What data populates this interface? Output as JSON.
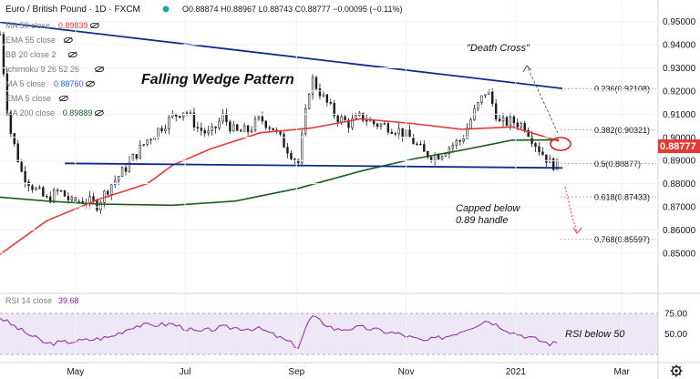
{
  "header": {
    "symbol": "Euro / British Pound · 1D · FXCM",
    "ohlc": "O0.88874 H0.88967 L0.88743 C0.88777 −0.00095 (−0.11%)"
  },
  "indicators": [
    {
      "name": "MA 50 close",
      "value": "0.89839",
      "color": "#e53935"
    },
    {
      "name": "EMA 55 close",
      "value": "",
      "color": "#787b86"
    },
    {
      "name": "BB 20 close 2",
      "value": "",
      "color": "#787b86"
    },
    {
      "name": "Ichimoku 9 26 52 26",
      "value": "",
      "color": "#787b86"
    },
    {
      "name": "MA 5 close",
      "value": "0.88760",
      "color": "#2962ff"
    },
    {
      "name": "EMA 5 close",
      "value": "",
      "color": "#787b86"
    },
    {
      "name": "MA 200 close",
      "value": "0.89889",
      "color": "#1b5e20"
    }
  ],
  "annotations": {
    "pattern": "Falling Wedge Pattern",
    "death_cross": "\"Death Cross\"",
    "capped_line1": "Capped below",
    "capped_line2": "0.89 handle",
    "rsi_note": "RSI below 50"
  },
  "rsi": {
    "label": "RSI 14 close",
    "value": "39.68",
    "color": "#8e24aa"
  },
  "price_tag": {
    "value": "0.88777",
    "color": "#e53935"
  },
  "colors": {
    "candle": "#1a1a1a",
    "wedge": "#0d2b8c",
    "ma50": "#e53935",
    "ma200": "#1b5e20",
    "rsi": "#8e24aa"
  },
  "chart_data": {
    "type": "candlestick",
    "x_ticks": [
      "May",
      "Jul",
      "Sep",
      "Nov",
      "2021",
      "Mar"
    ],
    "y_ticks": [
      "0.95000",
      "0.94000",
      "0.93000",
      "0.92000",
      "0.91000",
      "0.90000",
      "0.89000",
      "0.88000",
      "0.87000",
      "0.86000",
      "0.85000"
    ],
    "ylim": [
      0.8425,
      0.953
    ],
    "rsi_ticks": [
      "75.00",
      "50.00"
    ],
    "fib_levels": [
      {
        "label": "0.236(0.92108)",
        "value": 0.92108
      },
      {
        "label": "0.382(0.90321)",
        "value": 0.90321
      },
      {
        "label": "0.5(0.88877)",
        "value": 0.88877
      },
      {
        "label": "0.618(0.87433)",
        "value": 0.87433
      },
      {
        "label": "0.768(0.85597)",
        "value": 0.85597
      }
    ],
    "close_path": [
      [
        "Mar 20",
        0.9445
      ],
      [
        "Mar 25",
        0.905
      ],
      [
        "Apr 1",
        0.885
      ],
      [
        "Apr 8",
        0.878
      ],
      [
        "Apr 15",
        0.873
      ],
      [
        "Apr 22",
        0.877
      ],
      [
        "Apr 29",
        0.872
      ],
      [
        "May 6",
        0.873
      ],
      [
        "May 13",
        0.871
      ],
      [
        "May 20",
        0.879
      ],
      [
        "May 27",
        0.885
      ],
      [
        "Jun 3",
        0.892
      ],
      [
        "Jun 10",
        0.899
      ],
      [
        "Jun 17",
        0.904
      ],
      [
        "Jun 24",
        0.909
      ],
      [
        "Jul 1",
        0.912
      ],
      [
        "Jul 8",
        0.904
      ],
      [
        "Jul 15",
        0.901
      ],
      [
        "Jul 22",
        0.909
      ],
      [
        "Jul 29",
        0.902
      ],
      [
        "Aug 5",
        0.903
      ],
      [
        "Aug 12",
        0.908
      ],
      [
        "Aug 19",
        0.904
      ],
      [
        "Aug 26",
        0.896
      ],
      [
        "Sep 2",
        0.889
      ],
      [
        "Sep 9",
        0.926
      ],
      [
        "Sep 16",
        0.917
      ],
      [
        "Sep 23",
        0.909
      ],
      [
        "Sep 30",
        0.906
      ],
      [
        "Oct 7",
        0.909
      ],
      [
        "Oct 14",
        0.906
      ],
      [
        "Oct 21",
        0.905
      ],
      [
        "Oct 28",
        0.903
      ],
      [
        "Nov 4",
        0.899
      ],
      [
        "Nov 11",
        0.893
      ],
      [
        "Nov 18",
        0.892
      ],
      [
        "Nov 25",
        0.896
      ],
      [
        "Dec 2",
        0.899
      ],
      [
        "Dec 9",
        0.911
      ],
      [
        "Dec 16",
        0.921
      ],
      [
        "Dec 23",
        0.906
      ],
      [
        "Dec 30",
        0.907
      ],
      [
        "Jan 6",
        0.905
      ],
      [
        "Jan 13",
        0.896
      ],
      [
        "Jan 20",
        0.889
      ],
      [
        "Jan 25",
        0.8878
      ]
    ],
    "ma50_path": [
      [
        "Mar 20",
        0.8495
      ],
      [
        "Apr 15",
        0.864
      ],
      [
        "May 13",
        0.873
      ],
      [
        "Jun 10",
        0.88
      ],
      [
        "Jun 24",
        0.888
      ],
      [
        "Jul 15",
        0.895
      ],
      [
        "Aug 12",
        0.902
      ],
      [
        "Sep 9",
        0.904
      ],
      [
        "Oct 7",
        0.908
      ],
      [
        "Nov 4",
        0.906
      ],
      [
        "Dec 2",
        0.9035
      ],
      [
        "Dec 30",
        0.9045
      ],
      [
        "Jan 25",
        0.8984
      ]
    ],
    "ma200_path": [
      [
        "Mar 20",
        0.8742
      ],
      [
        "Apr 15",
        0.8725
      ],
      [
        "May 13",
        0.8712
      ],
      [
        "Jun 24",
        0.8707
      ],
      [
        "Jul 29",
        0.8725
      ],
      [
        "Sep 2",
        0.878
      ],
      [
        "Oct 7",
        0.8855
      ],
      [
        "Nov 4",
        0.8905
      ],
      [
        "Dec 2",
        0.8945
      ],
      [
        "Dec 30",
        0.8988
      ],
      [
        "Jan 25",
        0.8989
      ]
    ],
    "wedge_upper": [
      [
        "Mar 20",
        0.9497
      ],
      [
        "Jan 27",
        0.9211
      ]
    ],
    "wedge_lower": [
      [
        "Apr 25",
        0.8888
      ],
      [
        "Jan 27",
        0.8868
      ]
    ],
    "rsi_path": [
      [
        "Mar 20",
        70
      ],
      [
        "Apr 1",
        54
      ],
      [
        "Apr 15",
        38
      ],
      [
        "May 6",
        42
      ],
      [
        "May 20",
        46
      ],
      [
        "Jun 3",
        60
      ],
      [
        "Jun 24",
        62
      ],
      [
        "Jul 8",
        52
      ],
      [
        "Jul 22",
        58
      ],
      [
        "Aug 12",
        56
      ],
      [
        "Aug 26",
        42
      ],
      [
        "Sep 2",
        34
      ],
      [
        "Sep 9",
        72
      ],
      [
        "Sep 23",
        55
      ],
      [
        "Oct 7",
        58
      ],
      [
        "Oct 28",
        50
      ],
      [
        "Nov 11",
        41
      ],
      [
        "Nov 25",
        48
      ],
      [
        "Dec 9",
        60
      ],
      [
        "Dec 16",
        67
      ],
      [
        "Dec 30",
        52
      ],
      [
        "Jan 13",
        43
      ],
      [
        "Jan 20",
        38
      ],
      [
        "Jan 25",
        39.7
      ]
    ]
  }
}
